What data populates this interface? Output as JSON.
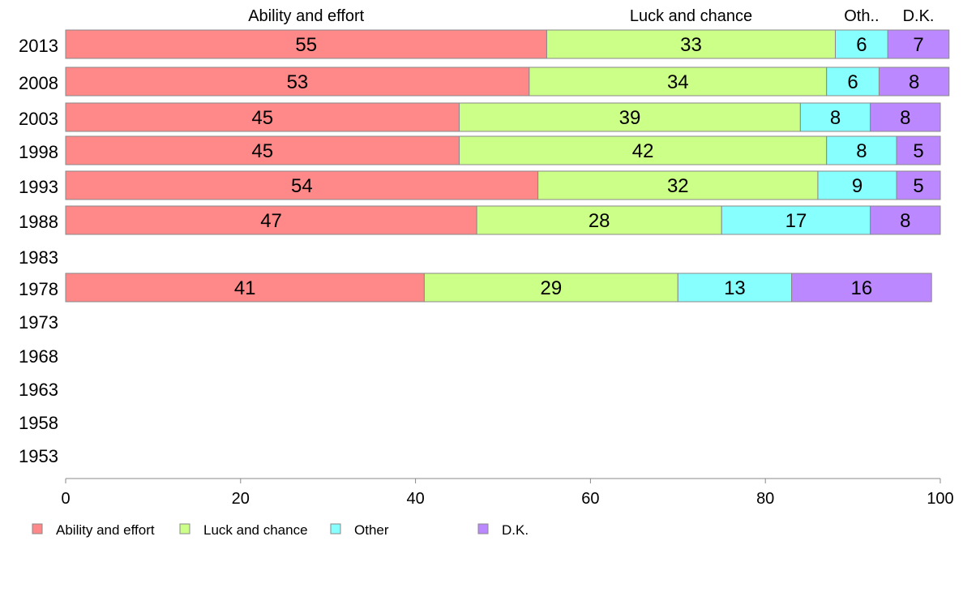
{
  "chart_data": {
    "type": "bar",
    "orientation": "horizontal",
    "stacked": true,
    "categories": [
      "2013",
      "2008",
      "2003",
      "1998",
      "1993",
      "1988",
      "1983",
      "1978",
      "1973",
      "1968",
      "1963",
      "1958",
      "1953"
    ],
    "series": [
      {
        "name": "Ability and effort",
        "color": "#ff8888",
        "values": [
          55,
          53,
          45,
          45,
          54,
          47,
          null,
          41,
          null,
          null,
          null,
          null,
          null
        ]
      },
      {
        "name": "Luck and chance",
        "color": "#ccff88",
        "values": [
          33,
          34,
          39,
          42,
          32,
          28,
          null,
          29,
          null,
          null,
          null,
          null,
          null
        ]
      },
      {
        "name": "Other",
        "color": "#88ffff",
        "values": [
          6,
          6,
          8,
          8,
          9,
          17,
          null,
          13,
          null,
          null,
          null,
          null,
          null
        ]
      },
      {
        "name": "D.K.",
        "color": "#bb88ff",
        "values": [
          7,
          8,
          8,
          5,
          5,
          8,
          null,
          16,
          null,
          null,
          null,
          null,
          null
        ]
      }
    ],
    "top_labels": [
      "Ability and effort",
      "Luck and chance",
      "Oth..",
      "D.K."
    ],
    "xlim": [
      0,
      100
    ],
    "xticks": [
      "0",
      "20",
      "40",
      "60",
      "80",
      "100"
    ],
    "xlabel": "",
    "ylabel": "",
    "title": "",
    "grid": false,
    "legend_position": "bottom-left"
  }
}
